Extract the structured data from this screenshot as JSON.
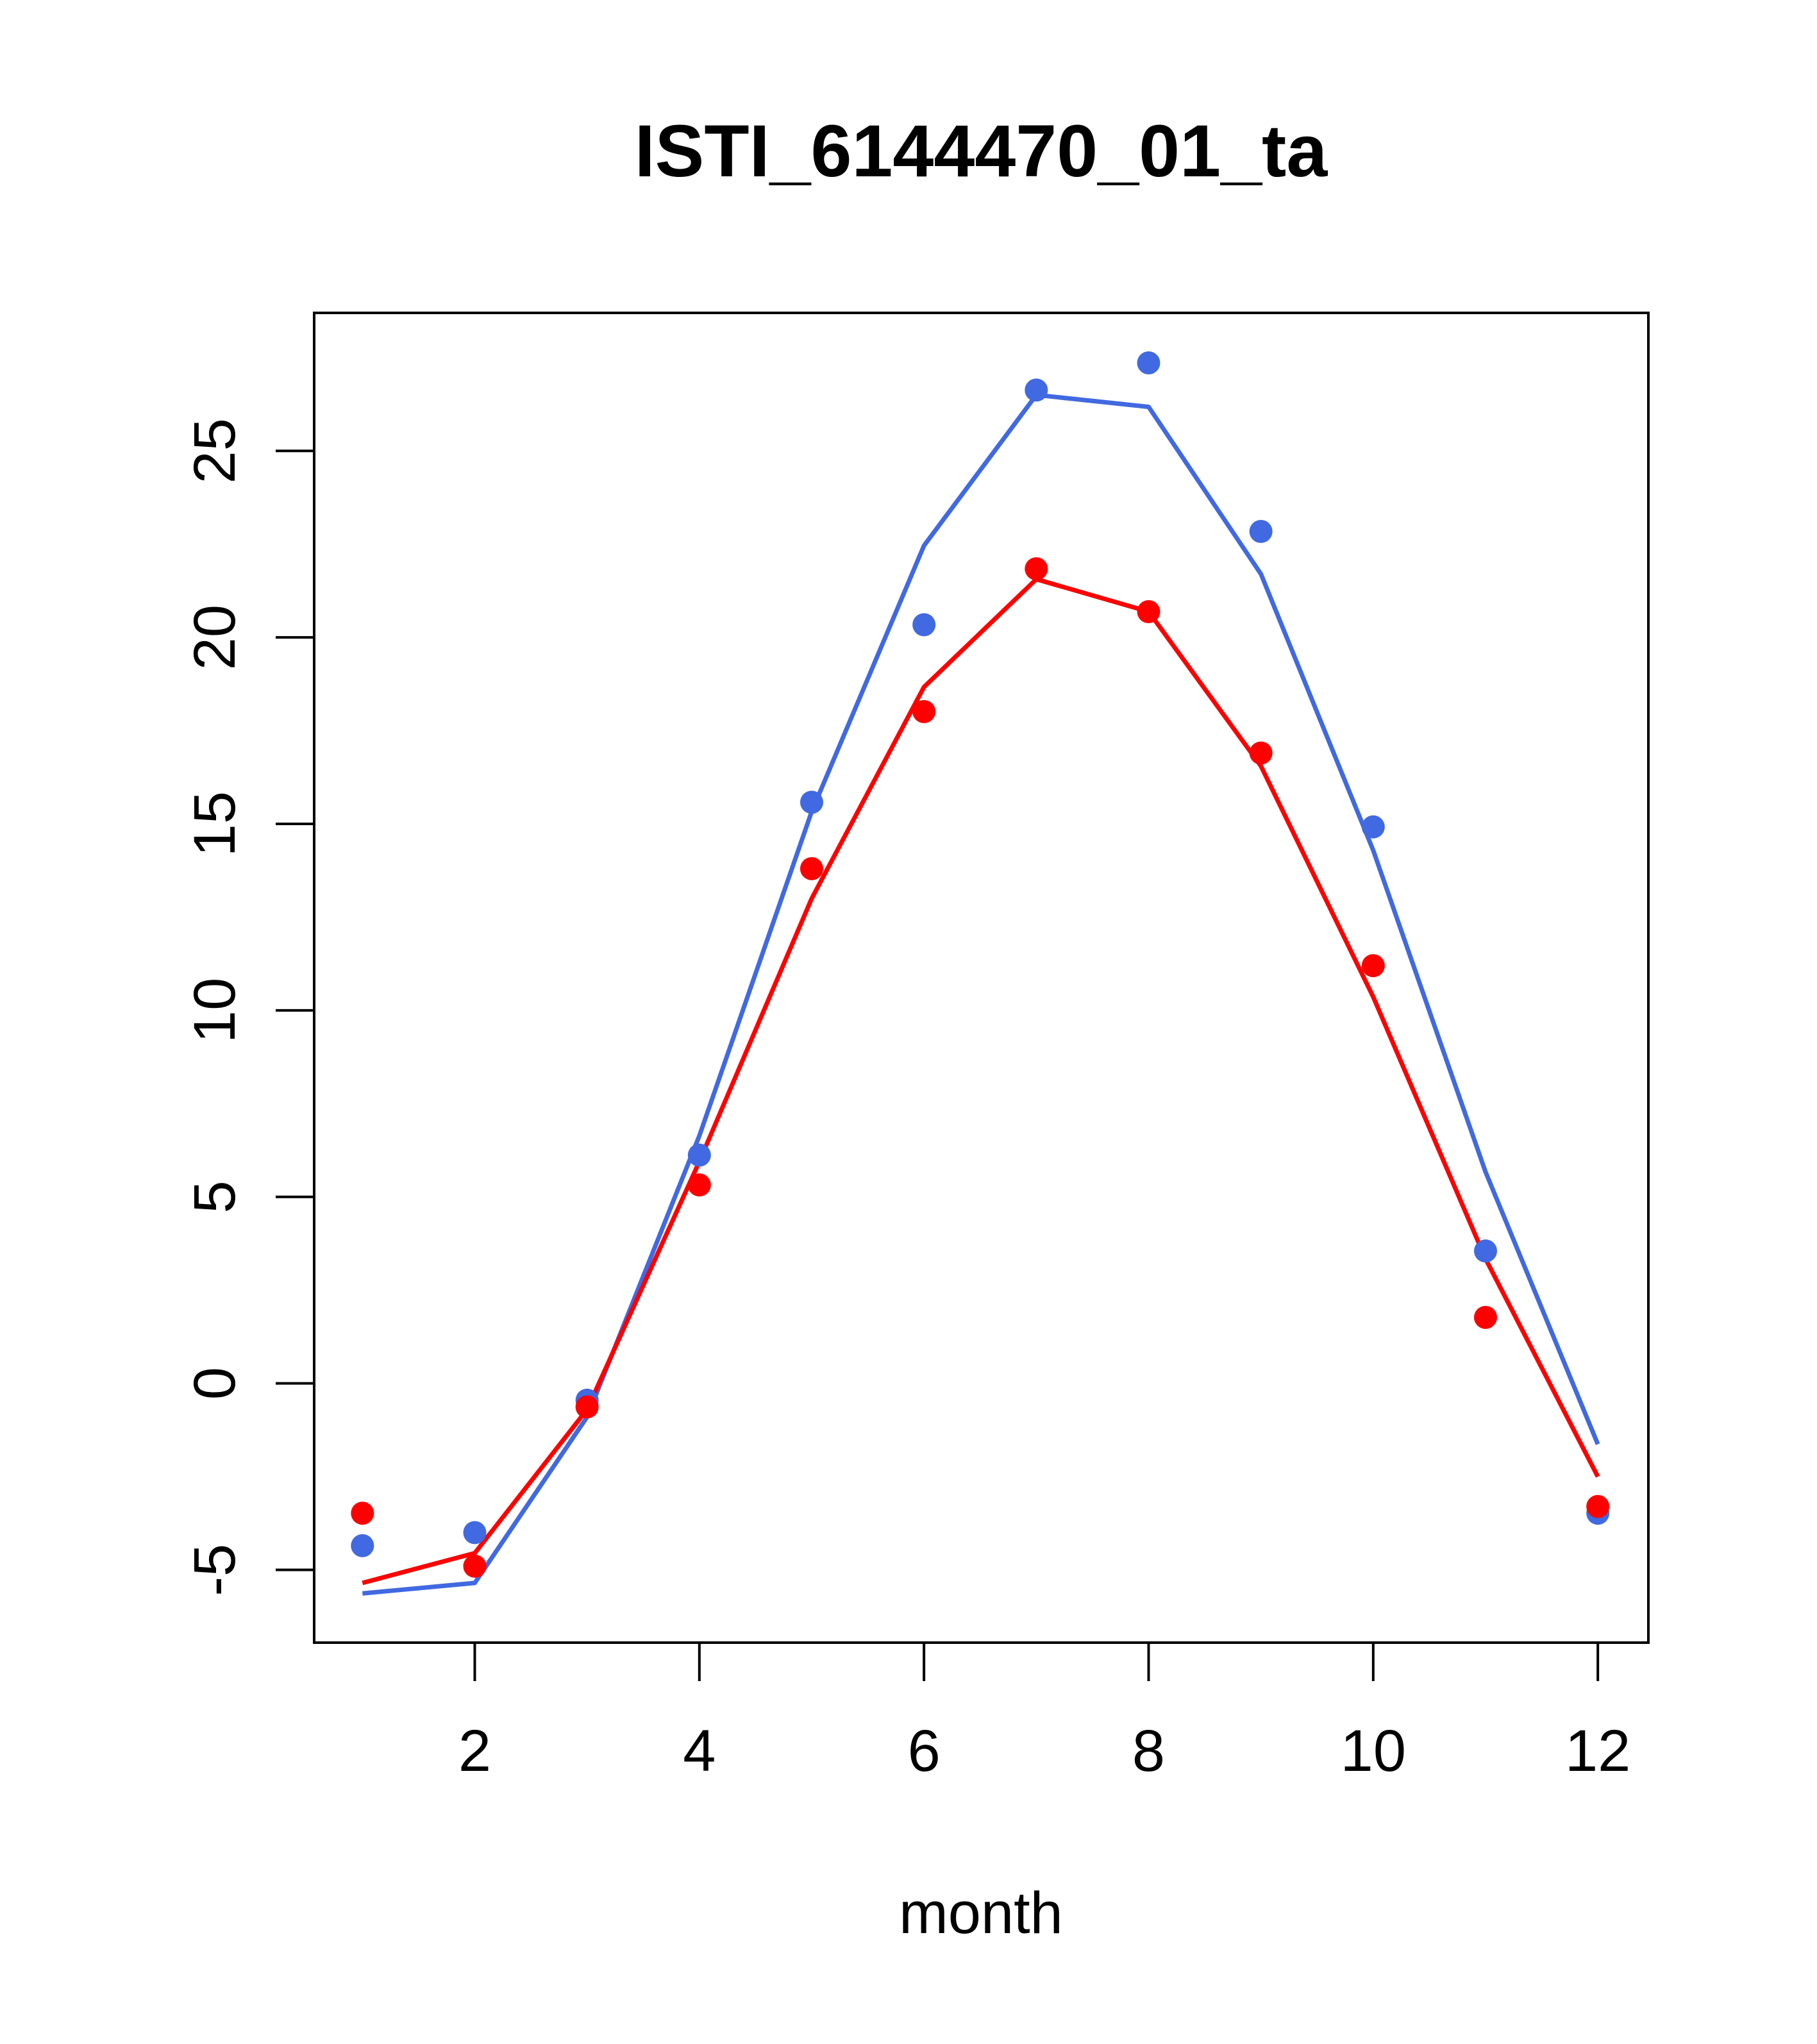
{
  "chart_data": {
    "type": "line",
    "title": "ISTI_6144470_01_ta",
    "xlabel": "month",
    "ylabel": "",
    "xlim": [
      0.57,
      12.45
    ],
    "ylim": [
      -6.95,
      28.7
    ],
    "x_ticks": [
      2,
      4,
      6,
      8,
      10,
      12
    ],
    "y_ticks": [
      -5,
      0,
      5,
      10,
      15,
      20,
      25
    ],
    "grid": false,
    "x": [
      1,
      2,
      3,
      4,
      5,
      6,
      7,
      8,
      9,
      10,
      11,
      12
    ],
    "series": [
      {
        "name": "blue points",
        "kind": "points",
        "color": "#4169E1",
        "values": [
          -4.35,
          -4.0,
          -0.45,
          6.12,
          15.58,
          20.34,
          26.63,
          27.36,
          22.84,
          14.92,
          3.55,
          -3.48
        ]
      },
      {
        "name": "red points",
        "kind": "points",
        "color": "#FF0000",
        "values": [
          -3.48,
          -4.9,
          -0.63,
          5.32,
          13.8,
          18.01,
          21.84,
          20.69,
          16.9,
          11.2,
          1.77,
          -3.3
        ]
      },
      {
        "name": "blue line",
        "kind": "line",
        "color": "#4169E1",
        "values": [
          -5.63,
          -5.35,
          -0.9,
          6.64,
          15.33,
          22.46,
          26.5,
          26.18,
          21.7,
          14.29,
          5.67,
          -1.63
        ]
      },
      {
        "name": "red line",
        "kind": "line",
        "color": "#FF0000",
        "values": [
          -5.35,
          -4.55,
          -0.7,
          5.95,
          13.0,
          18.67,
          21.56,
          20.69,
          16.55,
          10.36,
          3.34,
          -2.5
        ]
      }
    ]
  }
}
